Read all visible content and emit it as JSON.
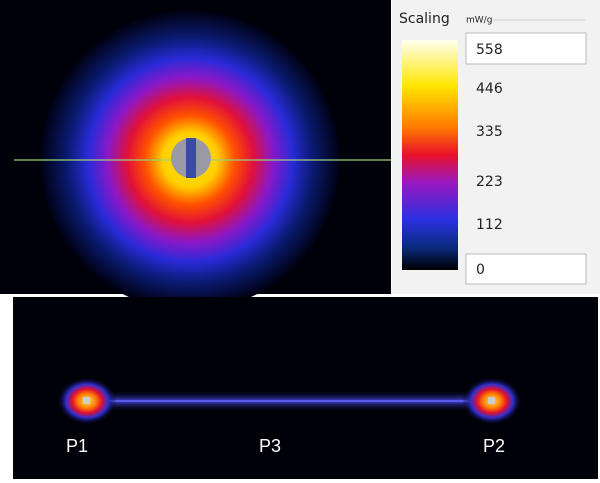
{
  "scale": {
    "title": "Scaling",
    "unit": "mW/g",
    "max": 558,
    "ticks": [
      446,
      335,
      223,
      112
    ],
    "min": 0
  },
  "probes": [
    "P1",
    "P3",
    "P2"
  ]
}
